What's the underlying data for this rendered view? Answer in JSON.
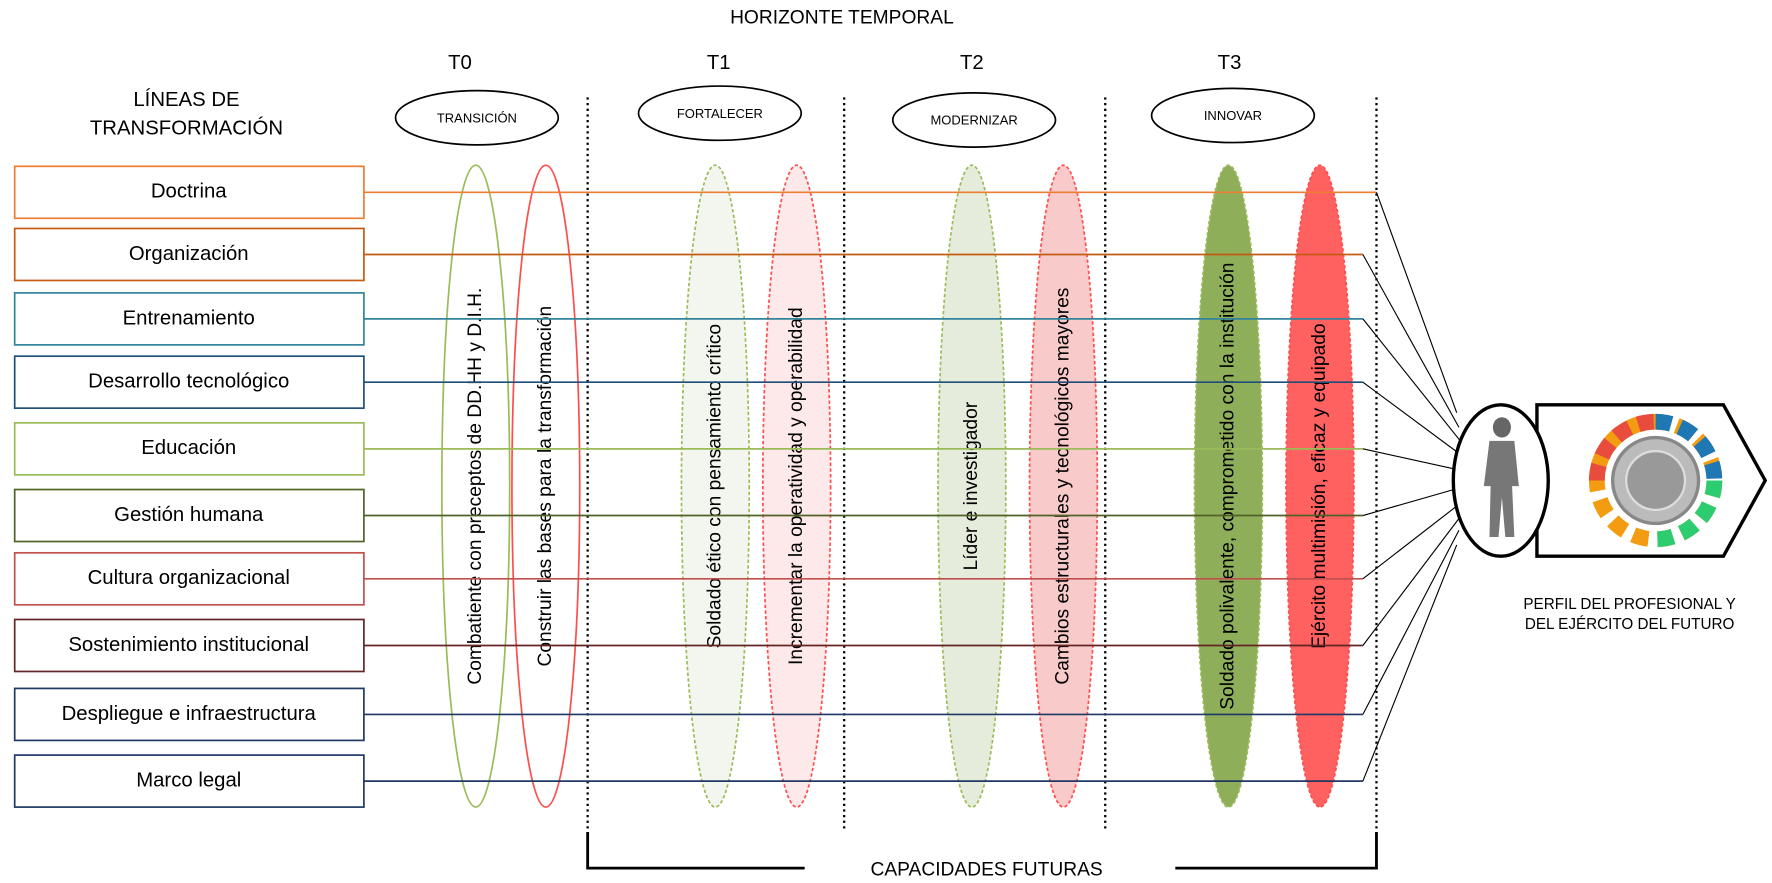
{
  "title": "HORIZONTE TEMPORAL",
  "lines_heading": [
    "LÍNEAS DE",
    "TRANSFORMACIÓN"
  ],
  "phases": [
    {
      "label": "T0",
      "name": "TRANSICIÓN",
      "capabilities": [
        "Combatiente con preceptos de DD.HH y D.I.H.",
        "Construir las bases para la transformación"
      ]
    },
    {
      "label": "T1",
      "name": "FORTALECER",
      "capabilities": [
        "Soldado ético con pensamiento crítico",
        "Incrementar la operatividad y operabilidad"
      ]
    },
    {
      "label": "T2",
      "name": "MODERNIZAR",
      "capabilities": [
        "Líder e investigador",
        "Cambios estructurales y tecnológicos mayores"
      ]
    },
    {
      "label": "T3",
      "name": "INNOVAR",
      "capabilities": [
        "Soldado polivalente, comprometido con la institución",
        "Ejército multimisión,  eficaz  y equipado"
      ]
    }
  ],
  "lines": [
    "Doctrina",
    "Organización",
    "Entrenamiento",
    "Desarrollo tecnológico",
    "Educación",
    "Gestión humana",
    "Cultura organizacional",
    "Sostenimiento institucional",
    "Despliegue e infraestructura",
    "Marco legal"
  ],
  "footer": "CAPACIDADES FUTURAS",
  "profile": [
    "PERFIL DEL PROFESIONAL Y",
    "DEL EJÉRCITO  DEL FUTURO"
  ]
}
